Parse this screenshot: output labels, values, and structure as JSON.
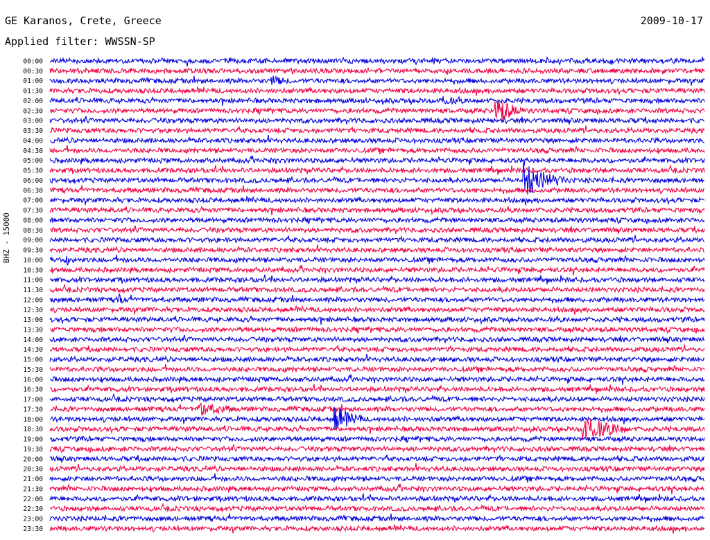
{
  "header": {
    "station": "GE Karanos, Crete, Greece",
    "filter": "Applied filter: WWSSN-SP",
    "date": "2009-10-17"
  },
  "chart_data": {
    "type": "seismogram",
    "ylabel": "BHZ - 15000",
    "row_labels": [
      "00:00",
      "00:30",
      "01:00",
      "01:30",
      "02:00",
      "02:30",
      "03:00",
      "03:30",
      "04:00",
      "04:30",
      "05:00",
      "05:30",
      "06:00",
      "06:30",
      "07:00",
      "07:30",
      "08:00",
      "08:30",
      "09:00",
      "09:30",
      "10:00",
      "10:30",
      "11:00",
      "11:30",
      "12:00",
      "12:30",
      "13:00",
      "13:30",
      "14:00",
      "14:30",
      "15:00",
      "15:30",
      "16:00",
      "16:30",
      "17:00",
      "17:30",
      "18:00",
      "18:30",
      "19:00",
      "19:30",
      "20:00",
      "20:30",
      "21:00",
      "21:30",
      "22:00",
      "22:30",
      "23:00",
      "23:30"
    ],
    "minutes_per_row": 30,
    "colors": [
      "#0000dd",
      "#ee0044"
    ],
    "events": [
      {
        "row": "02:30",
        "minute": 20.5,
        "amplitude": 4.0,
        "duration_min": 1.2
      },
      {
        "row": "06:00",
        "minute": 21.8,
        "amplitude": 5.0,
        "duration_min": 1.8
      },
      {
        "row": "17:30",
        "minute": 6.9,
        "amplitude": 2.0,
        "duration_min": 1.5
      },
      {
        "row": "18:00",
        "minute": 13.1,
        "amplitude": 4.0,
        "duration_min": 1.2
      },
      {
        "row": "18:30",
        "minute": 24.5,
        "amplitude": 4.0,
        "duration_min": 2.0
      },
      {
        "row": "12:00",
        "minute": 3.2,
        "amplitude": 1.6,
        "duration_min": 0.3
      },
      {
        "row": "10:00",
        "minute": 0.8,
        "amplitude": 1.6,
        "duration_min": 0.3
      },
      {
        "row": "01:00",
        "minute": 10.2,
        "amplitude": 1.2,
        "duration_min": 0.8
      },
      {
        "row": "02:00",
        "minute": 18.0,
        "amplitude": 1.0,
        "duration_min": 1.0
      }
    ]
  }
}
